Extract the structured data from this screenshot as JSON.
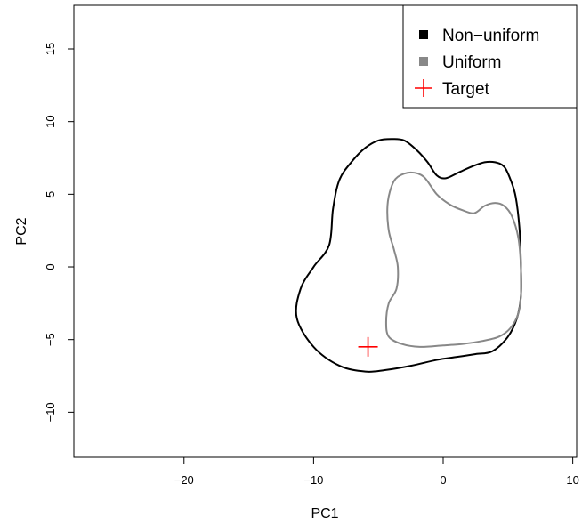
{
  "chart_data": {
    "type": "line",
    "title": "",
    "xlabel": "PC1",
    "ylabel": "PC2",
    "xlim": [
      -28.5,
      10.3
    ],
    "ylim": [
      -13.1,
      18
    ],
    "x_ticks": [
      -20,
      -10,
      0,
      10
    ],
    "y_ticks": [
      -10,
      -5,
      0,
      5,
      10,
      15
    ],
    "grid": false,
    "legend_position": "top-right",
    "series": [
      {
        "name": "Non−uniform",
        "type": "closed-contour",
        "color": "#000000",
        "points": [
          [
            -4,
            8.8
          ],
          [
            -3,
            8.7
          ],
          [
            -2,
            8.0
          ],
          [
            -1.2,
            7.2
          ],
          [
            -0.5,
            6.3
          ],
          [
            0.2,
            6.1
          ],
          [
            1.2,
            6.5
          ],
          [
            2.2,
            6.9
          ],
          [
            3.2,
            7.2
          ],
          [
            4.0,
            7.2
          ],
          [
            4.7,
            6.9
          ],
          [
            5.2,
            6.0
          ],
          [
            5.6,
            4.8
          ],
          [
            5.9,
            2.5
          ],
          [
            6.0,
            0.0
          ],
          [
            6.0,
            -2.0
          ],
          [
            5.7,
            -3.5
          ],
          [
            5.0,
            -4.8
          ],
          [
            3.8,
            -5.8
          ],
          [
            2.5,
            -6.0
          ],
          [
            1.0,
            -6.2
          ],
          [
            -0.5,
            -6.4
          ],
          [
            -2.5,
            -6.8
          ],
          [
            -4.5,
            -7.1
          ],
          [
            -6.0,
            -7.2
          ],
          [
            -8.0,
            -6.8
          ],
          [
            -10.0,
            -5.5
          ],
          [
            -11.3,
            -3.5
          ],
          [
            -11.0,
            -1.5
          ],
          [
            -10.0,
            0.0
          ],
          [
            -8.8,
            1.5
          ],
          [
            -8.5,
            4.0
          ],
          [
            -8.0,
            6.0
          ],
          [
            -7.0,
            7.3
          ],
          [
            -6.0,
            8.2
          ],
          [
            -5.0,
            8.7
          ]
        ]
      },
      {
        "name": "Uniform",
        "type": "closed-contour",
        "color": "#888888",
        "points": [
          [
            -3.5,
            6.2
          ],
          [
            -2.5,
            6.5
          ],
          [
            -1.5,
            6.2
          ],
          [
            -0.5,
            5.0
          ],
          [
            0.5,
            4.3
          ],
          [
            1.5,
            3.9
          ],
          [
            2.4,
            3.7
          ],
          [
            3.2,
            4.2
          ],
          [
            4.0,
            4.4
          ],
          [
            4.7,
            4.2
          ],
          [
            5.3,
            3.5
          ],
          [
            5.8,
            2.0
          ],
          [
            6.0,
            0.0
          ],
          [
            6.0,
            -2.0
          ],
          [
            5.8,
            -3.2
          ],
          [
            5.2,
            -4.2
          ],
          [
            4.3,
            -4.8
          ],
          [
            3.0,
            -5.1
          ],
          [
            1.5,
            -5.3
          ],
          [
            0.0,
            -5.4
          ],
          [
            -1.8,
            -5.5
          ],
          [
            -3.2,
            -5.3
          ],
          [
            -4.2,
            -4.8
          ],
          [
            -4.4,
            -3.8
          ],
          [
            -4.2,
            -2.5
          ],
          [
            -3.6,
            -1.5
          ],
          [
            -3.5,
            0.0
          ],
          [
            -3.8,
            1.2
          ],
          [
            -4.2,
            2.5
          ],
          [
            -4.3,
            4.2
          ],
          [
            -4.0,
            5.5
          ]
        ]
      },
      {
        "name": "Target",
        "type": "point",
        "marker": "plus",
        "color": "#ff0000",
        "x": -5.8,
        "y": -5.5
      }
    ]
  }
}
